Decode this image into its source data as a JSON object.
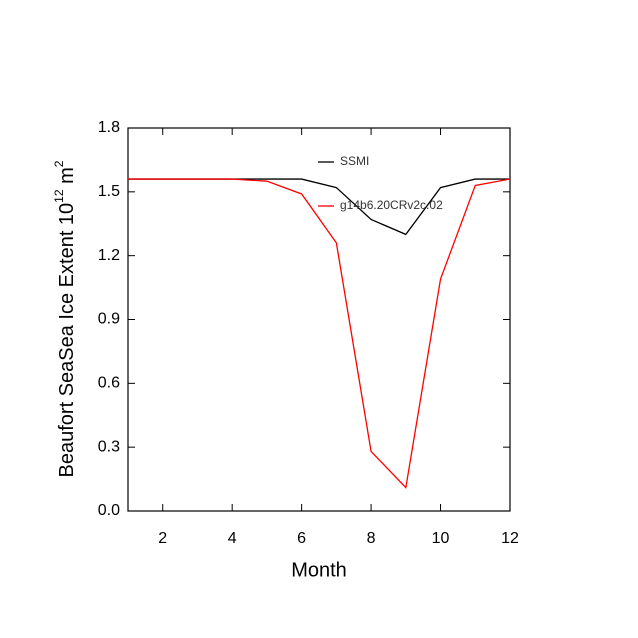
{
  "chart_data": {
    "type": "line",
    "xlabel": "Month",
    "ylabel": {
      "text": "Beaufort SeaSea Ice Extent 10",
      "exponent": "12",
      "unit": " m",
      "unit_exponent": "2"
    },
    "x": [
      1,
      2,
      3,
      4,
      5,
      6,
      7,
      8,
      9,
      10,
      11,
      12
    ],
    "series": [
      {
        "name": "SSMI",
        "color": "#000000",
        "values": [
          1.56,
          1.56,
          1.56,
          1.56,
          1.56,
          1.56,
          1.52,
          1.37,
          1.3,
          1.52,
          1.56,
          1.56
        ]
      },
      {
        "name": "g14b6.20CRv2c.02",
        "color": "#ff0000",
        "values": [
          1.56,
          1.56,
          1.56,
          1.56,
          1.55,
          1.49,
          1.26,
          0.28,
          0.11,
          1.09,
          1.53,
          1.56
        ]
      }
    ],
    "xlim": [
      1,
      12
    ],
    "xticks": [
      2,
      4,
      6,
      8,
      10,
      12
    ],
    "ylim": [
      0,
      1.8
    ],
    "yticks": [
      {
        "value": 0,
        "label": "0.0"
      },
      0.3,
      0.6,
      0.9,
      1.2,
      1.5,
      1.8
    ],
    "grid": false,
    "legend": "top-center"
  }
}
